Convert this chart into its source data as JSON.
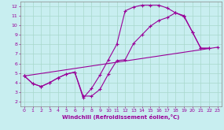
{
  "xlabel": "Windchill (Refroidissement éolien,°C)",
  "xlim": [
    -0.5,
    23.5
  ],
  "ylim": [
    1.5,
    12.5
  ],
  "xticks": [
    0,
    1,
    2,
    3,
    4,
    5,
    6,
    7,
    8,
    9,
    10,
    11,
    12,
    13,
    14,
    15,
    16,
    17,
    18,
    19,
    20,
    21,
    22,
    23
  ],
  "yticks": [
    2,
    3,
    4,
    5,
    6,
    7,
    8,
    9,
    10,
    11,
    12
  ],
  "bg_color": "#c8eef0",
  "line_color": "#990099",
  "grid_color": "#a8d8cc",
  "line1_x": [
    0,
    1,
    2,
    3,
    4,
    5,
    6,
    7,
    8,
    9,
    10,
    11,
    12,
    13,
    14,
    15,
    16,
    17,
    18,
    19,
    20,
    21,
    22
  ],
  "line1_y": [
    4.7,
    3.9,
    3.6,
    4.0,
    4.5,
    4.9,
    5.1,
    2.4,
    3.4,
    4.8,
    6.4,
    8.0,
    11.5,
    11.9,
    12.1,
    12.1,
    12.1,
    11.8,
    11.3,
    10.9,
    9.3,
    7.6,
    7.6
  ],
  "line2_x": [
    0,
    1,
    2,
    3,
    4,
    5,
    6,
    7,
    8,
    9,
    10,
    11,
    12,
    13,
    14,
    15,
    16,
    17,
    18,
    19,
    20,
    21,
    22
  ],
  "line2_y": [
    4.7,
    3.9,
    3.6,
    4.0,
    4.5,
    4.9,
    5.1,
    2.6,
    2.6,
    3.3,
    4.9,
    6.3,
    6.4,
    8.1,
    9.0,
    9.9,
    10.5,
    10.8,
    11.3,
    11.0,
    9.3,
    7.6,
    7.6
  ],
  "line3_x": [
    0,
    23
  ],
  "line3_y": [
    4.7,
    7.7
  ]
}
